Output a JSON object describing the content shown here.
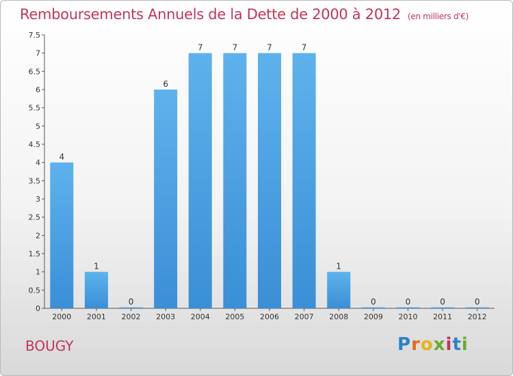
{
  "chart_data": {
    "type": "bar",
    "title": "Remboursements Annuels de la Dette de 2000 à 2012",
    "subtitle": "(en milliers d'€)",
    "categories": [
      "2000",
      "2001",
      "2002",
      "2003",
      "2004",
      "2005",
      "2006",
      "2007",
      "2008",
      "2009",
      "2010",
      "2011",
      "2012"
    ],
    "values": [
      4,
      1,
      0,
      6,
      7,
      7,
      7,
      7,
      1,
      0,
      0,
      0,
      0
    ],
    "data_labels": [
      "4",
      "1",
      "0",
      "6",
      "7",
      "7",
      "7",
      "7",
      "1",
      "0",
      "0",
      "0",
      "0"
    ],
    "yticks": [
      "0",
      "0.5",
      "1",
      "1.5",
      "2",
      "2.5",
      "3",
      "3.5",
      "4",
      "4.5",
      "5",
      "5.5",
      "6",
      "6.5",
      "7",
      "7.5"
    ],
    "ylim": [
      0,
      7.5
    ],
    "grid": false,
    "bar_color": "#3a8fd6"
  },
  "commune": "BOUGY",
  "logo": {
    "letters": [
      "P",
      "r",
      "o",
      "x",
      "i",
      "t",
      "i"
    ],
    "colors": [
      "#2a82c9",
      "#e86a1a",
      "#e8b21a",
      "#6aab2e",
      "#c0365a",
      "#2a82c9",
      "#6aab2e"
    ]
  }
}
